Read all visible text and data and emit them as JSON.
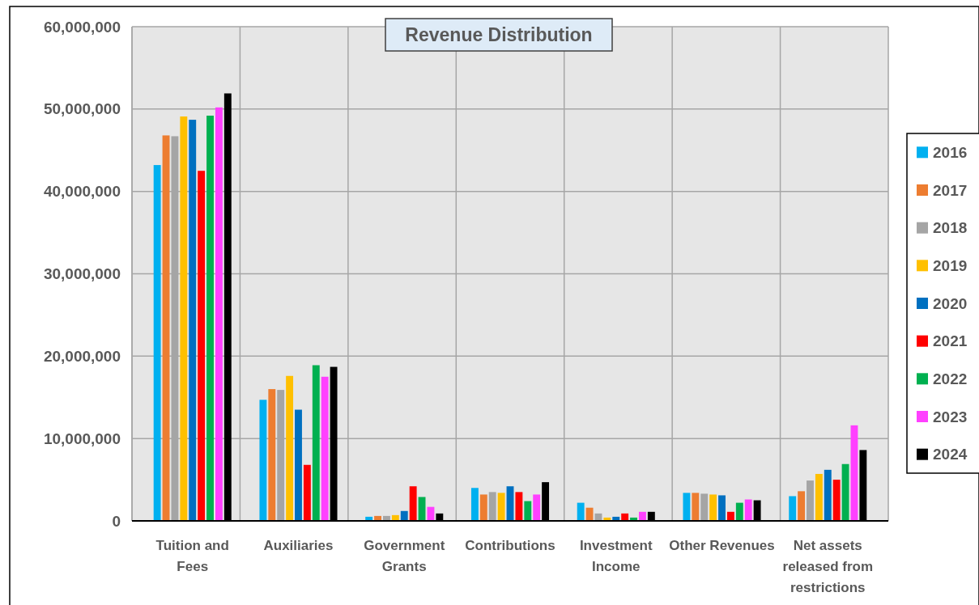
{
  "chart_data": {
    "type": "bar",
    "title": "Revenue Distribution",
    "categories": [
      "Tuition and Fees",
      "Auxiliaries",
      "Government Grants",
      "Contributions",
      "Investment Income",
      "Other Revenues",
      "Net assets released from restrictions"
    ],
    "series": [
      {
        "name": "2016",
        "color": "#00b0f0",
        "values": [
          43200000,
          14700000,
          500000,
          4000000,
          2200000,
          3400000,
          3000000
        ]
      },
      {
        "name": "2017",
        "color": "#ed7d31",
        "values": [
          46800000,
          16000000,
          600000,
          3200000,
          1600000,
          3400000,
          3600000
        ]
      },
      {
        "name": "2018",
        "color": "#a5a5a5",
        "values": [
          46700000,
          15900000,
          600000,
          3500000,
          900000,
          3300000,
          4900000
        ]
      },
      {
        "name": "2019",
        "color": "#ffc000",
        "values": [
          49100000,
          17600000,
          700000,
          3400000,
          400000,
          3200000,
          5700000
        ]
      },
      {
        "name": "2020",
        "color": "#0070c0",
        "values": [
          48700000,
          13500000,
          1200000,
          4200000,
          500000,
          3100000,
          6200000
        ]
      },
      {
        "name": "2021",
        "color": "#ff0000",
        "values": [
          42500000,
          6800000,
          4200000,
          3500000,
          900000,
          1100000,
          5000000
        ]
      },
      {
        "name": "2022",
        "color": "#00b050",
        "values": [
          49200000,
          18900000,
          2900000,
          2400000,
          400000,
          2200000,
          6900000
        ]
      },
      {
        "name": "2023",
        "color": "#ff40ff",
        "values": [
          50200000,
          17500000,
          1700000,
          3200000,
          1100000,
          2600000,
          11600000
        ]
      },
      {
        "name": "2024",
        "color": "#000000",
        "values": [
          51900000,
          18700000,
          900000,
          4700000,
          1100000,
          2500000,
          8600000
        ]
      }
    ],
    "ylim": [
      0,
      60000000
    ],
    "yticks": [
      {
        "value": 0,
        "label": "0"
      },
      {
        "value": 10000000,
        "label": "10,000,000"
      },
      {
        "value": 20000000,
        "label": "20,000,000"
      },
      {
        "value": 30000000,
        "label": "30,000,000"
      },
      {
        "value": 40000000,
        "label": "40,000,000"
      },
      {
        "value": 50000000,
        "label": "50,000,000"
      },
      {
        "value": 60000000,
        "label": "60,000,000"
      }
    ],
    "grid": true,
    "legend": "right"
  }
}
